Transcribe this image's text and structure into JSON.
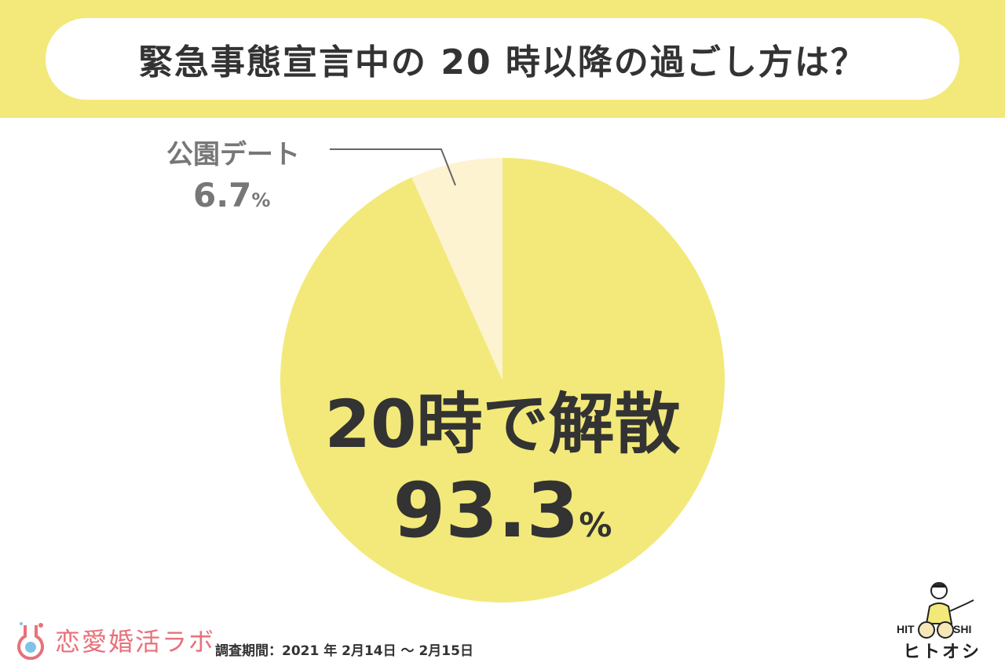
{
  "header": {
    "title": "緊急事態宣言中の 20 時以降の過ごし方は？"
  },
  "colors": {
    "band": "#f2e97a",
    "major_slice": "#f2e97a",
    "minor_slice": "#fdf3d0",
    "text_dark": "#333333",
    "text_grey": "#777777",
    "logo_pink": "#e8717a"
  },
  "chart_data": {
    "type": "pie",
    "slices": [
      {
        "label": "20時で解散",
        "value": 93.3,
        "unit": "%",
        "color": "#f2e97a"
      },
      {
        "label": "公園デート",
        "value": 6.7,
        "unit": "%",
        "color": "#fdf3d0"
      }
    ]
  },
  "footer": {
    "logo_text": "恋愛婚活ラボ",
    "survey_period": "調査期間：2021 年 2月14日 ～ 2月15日",
    "brand_name": "ヒトオシ",
    "brand_letters_left": "HIT",
    "brand_letters_right": "SHI"
  }
}
